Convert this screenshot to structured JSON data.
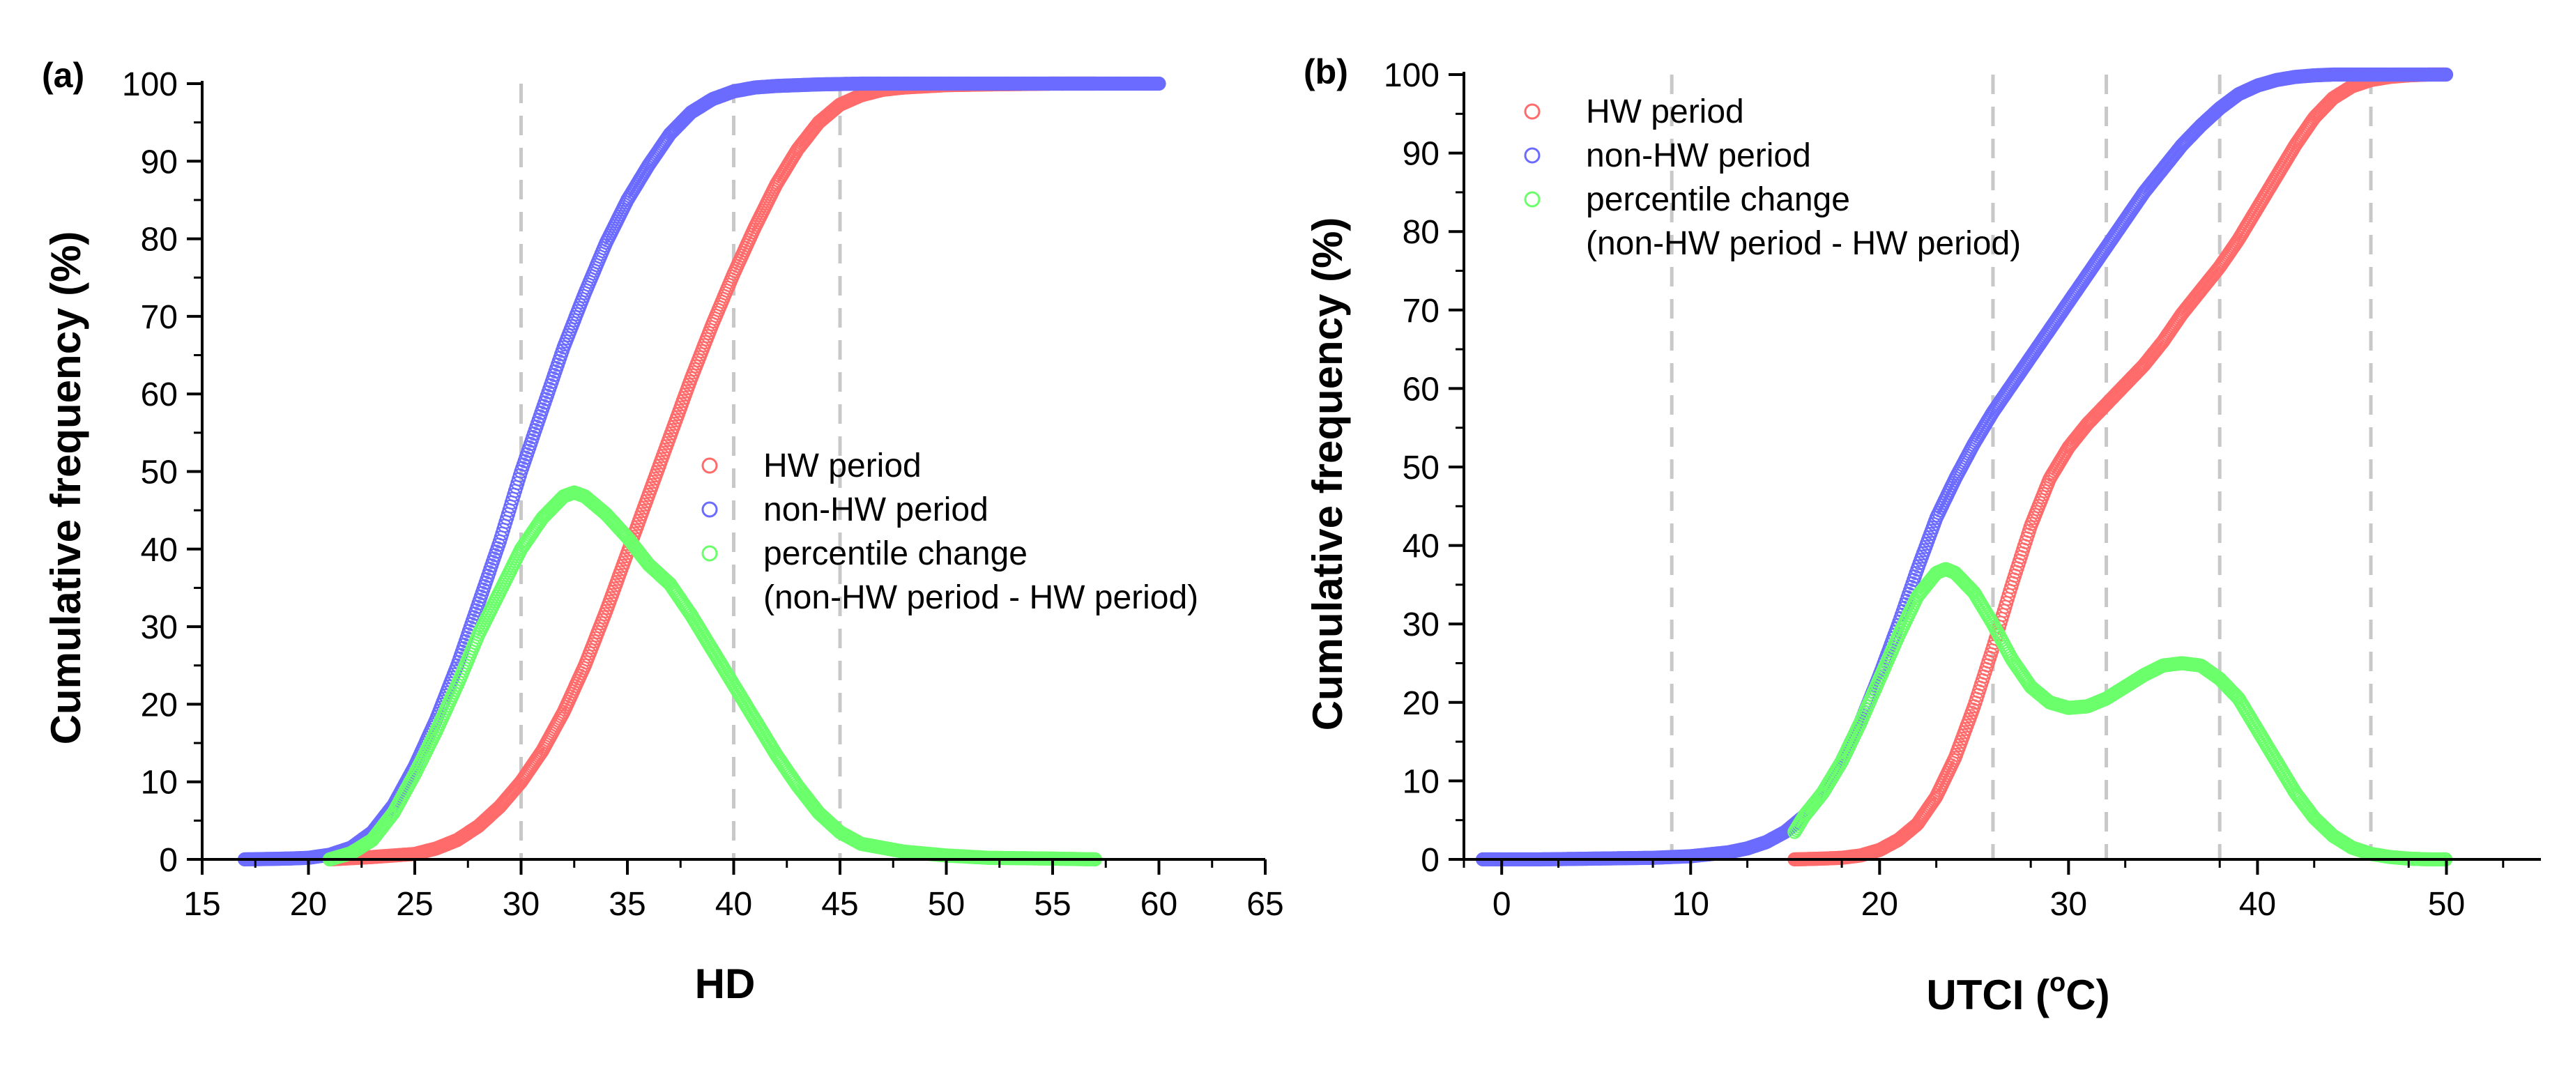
{
  "chart_data": [
    {
      "panel_label": "(a)",
      "type": "scatter",
      "xlabel": "HD",
      "ylabel": "Cumulative frequency (%)",
      "xlim": [
        15,
        65
      ],
      "ylim": [
        0,
        100
      ],
      "xticks": [
        15,
        20,
        25,
        30,
        35,
        40,
        45,
        50,
        55,
        60,
        65
      ],
      "yticks": [
        0,
        10,
        20,
        30,
        40,
        50,
        60,
        70,
        80,
        90,
        100
      ],
      "vlines": [
        30,
        40,
        45
      ],
      "legend": {
        "position": "center-right",
        "entries": [
          "HW period",
          "non-HW period",
          "percentile change",
          "(non-HW period - HW period)"
        ]
      },
      "series": [
        {
          "name": "HW period",
          "color": "#ff6b6b",
          "x": [
            21,
            23,
            25,
            26,
            27,
            28,
            29,
            30,
            31,
            32,
            33,
            34,
            35,
            36,
            37,
            38,
            39,
            40,
            41,
            42,
            43,
            44,
            45,
            46,
            47,
            48,
            50,
            52,
            55,
            57
          ],
          "y": [
            0,
            0.3,
            0.7,
            1.4,
            2.5,
            4.3,
            6.8,
            10,
            14,
            19,
            25,
            32,
            39.5,
            47,
            54.5,
            62,
            69,
            75.5,
            81.5,
            87,
            91.5,
            95,
            97.3,
            98.5,
            99.2,
            99.5,
            99.8,
            99.9,
            100,
            100
          ]
        },
        {
          "name": "non-HW period",
          "color": "#6b6bff",
          "x": [
            17,
            19,
            20,
            21,
            22,
            23,
            24,
            25,
            26,
            27,
            28,
            29,
            30,
            31,
            32,
            33,
            34,
            35,
            36,
            37,
            38,
            39,
            40,
            41,
            42,
            44,
            46,
            50,
            55,
            60
          ],
          "y": [
            0,
            0.1,
            0.2,
            0.6,
            1.5,
            3.5,
            7,
            12,
            18,
            25,
            33,
            41,
            50,
            58,
            66,
            73,
            79.5,
            85,
            89.5,
            93.5,
            96.3,
            98,
            99,
            99.5,
            99.7,
            99.9,
            100,
            100,
            100,
            100
          ]
        },
        {
          "name": "percentile change",
          "color": "#6bff6b",
          "x": [
            21,
            22,
            23,
            24,
            25,
            26,
            27,
            28,
            29,
            30,
            31,
            32,
            32.5,
            33,
            34,
            35,
            36,
            37,
            38,
            39,
            40,
            41,
            42,
            43,
            44,
            45,
            46,
            48,
            50,
            52,
            55,
            57
          ],
          "y": [
            0,
            0.8,
            2.5,
            6,
            11,
            16.5,
            22.5,
            29,
            34.5,
            40,
            44,
            46.8,
            47.3,
            46.8,
            44.5,
            41.5,
            38,
            35.5,
            31.5,
            27,
            22.5,
            18,
            13.5,
            9.5,
            6,
            3.5,
            2,
            1,
            0.5,
            0.2,
            0.1,
            0
          ]
        }
      ]
    },
    {
      "panel_label": "(b)",
      "type": "scatter",
      "xlabel": "UTCI (°C)",
      "ylabel": "Cumulative frequency (%)",
      "xlim": [
        -2,
        55
      ],
      "ylim": [
        0,
        100
      ],
      "xticks": [
        0,
        10,
        20,
        30,
        40,
        50
      ],
      "yticks": [
        0,
        10,
        20,
        30,
        40,
        50,
        60,
        70,
        80,
        90,
        100
      ],
      "vlines": [
        9,
        26,
        32,
        38,
        46
      ],
      "legend": {
        "position": "top-left",
        "entries": [
          "HW period",
          "non-HW period",
          "percentile change",
          "(non-HW period - HW period)"
        ]
      },
      "series": [
        {
          "name": "HW period",
          "color": "#ff6b6b",
          "x": [
            15.5,
            17,
            18,
            19,
            20,
            21,
            22,
            23,
            24,
            25,
            26,
            27,
            28,
            29,
            30,
            31,
            32,
            33,
            34,
            35,
            36,
            37,
            38,
            39,
            40,
            41,
            42,
            43,
            44,
            45,
            46,
            47,
            48,
            49,
            50
          ],
          "y": [
            0,
            0.1,
            0.2,
            0.5,
            1.2,
            2.5,
            4.5,
            8,
            13,
            19.5,
            27,
            35,
            42.5,
            48.5,
            52.5,
            55.5,
            58,
            60.5,
            63,
            66,
            69.5,
            72.5,
            75.5,
            79,
            83,
            87,
            91,
            94.5,
            97,
            98.5,
            99.3,
            99.7,
            99.9,
            100,
            100
          ]
        },
        {
          "name": "non-HW period",
          "color": "#6b6bff",
          "x": [
            -1,
            2,
            5,
            8,
            10,
            12,
            13,
            14,
            15,
            16,
            17,
            18,
            19,
            20,
            21,
            22,
            23,
            24,
            25,
            26,
            27,
            28,
            29,
            30,
            31,
            32,
            33,
            34,
            35,
            36,
            37,
            38,
            39,
            40,
            41,
            42,
            43,
            44,
            46,
            48,
            50
          ],
          "y": [
            0,
            0,
            0.1,
            0.2,
            0.4,
            0.9,
            1.4,
            2.2,
            3.5,
            5.5,
            8.5,
            12.5,
            17.5,
            23.5,
            30,
            37,
            43.5,
            48.5,
            53,
            57,
            60.5,
            64,
            67.5,
            71,
            74.5,
            78,
            81.5,
            85,
            88,
            91,
            93.5,
            95.7,
            97.5,
            98.6,
            99.3,
            99.7,
            99.9,
            100,
            100,
            100,
            100
          ]
        },
        {
          "name": "percentile change",
          "color": "#6bff6b",
          "x": [
            15.5,
            16,
            17,
            18,
            19,
            20,
            21,
            22,
            23,
            23.5,
            24,
            25,
            26,
            27,
            28,
            29,
            30,
            31,
            32,
            33,
            34,
            35,
            36,
            37,
            38,
            39,
            40,
            41,
            42,
            43,
            44,
            45,
            46,
            47,
            48,
            49,
            50
          ],
          "y": [
            3.5,
            5.5,
            8.5,
            12.5,
            17.5,
            23,
            28.5,
            33.5,
            36.5,
            37,
            36.5,
            34,
            30,
            25.5,
            22,
            20,
            19.3,
            19.5,
            20.5,
            22,
            23.5,
            24.7,
            25,
            24.7,
            23,
            20.5,
            16.5,
            12.5,
            8.5,
            5.3,
            3,
            1.5,
            0.7,
            0.3,
            0.1,
            0,
            0
          ]
        }
      ]
    }
  ]
}
